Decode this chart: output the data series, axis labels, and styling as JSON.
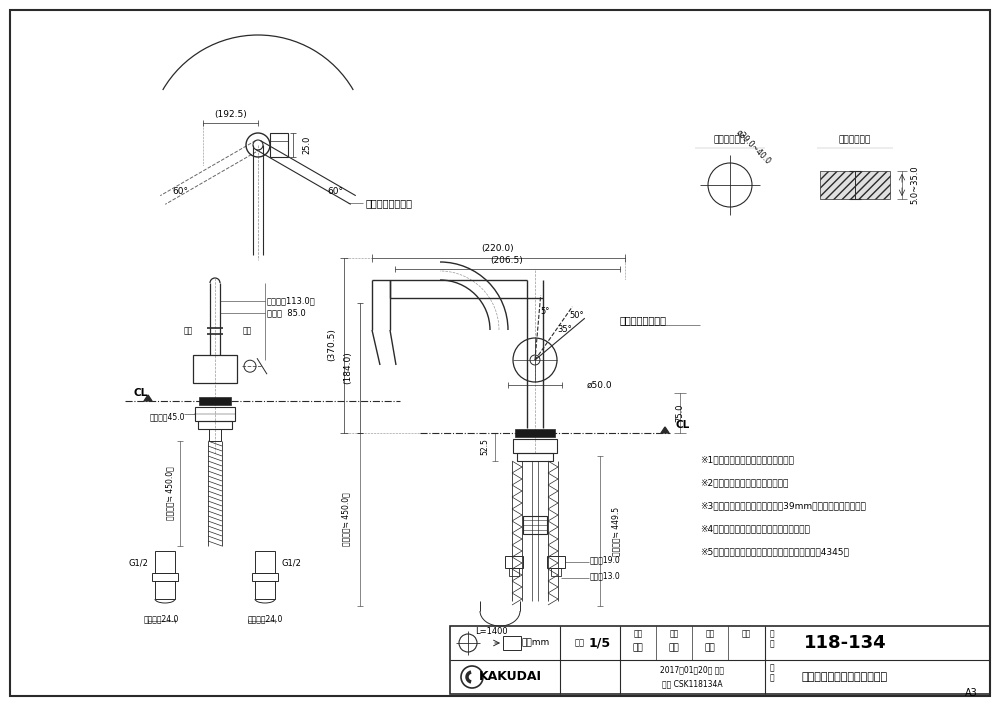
{
  "bg_color": "#ffffff",
  "line_color": "#2a2a2a",
  "dim_color": "#2a2a2a",
  "title": "シングルレバー引出し混合栓",
  "product_number": "118-134",
  "brand": "KAKUDAI",
  "scale": "1/5",
  "unit": "単位mm",
  "date": "2017年01月20日 作成",
  "drawing_number": "CSK118134A",
  "note1": "※1　（）内寸法は参考寸法である。",
  "note2": "※2　止水栓を必ず設置すること。",
  "note3": "※3　ブレードホースは曲げ半径39mm以上を確保すること。",
  "note4": "※4　銅管部分は無理に屈曲させないこと。",
  "note5": "※5　水受容器を必ず設置すること。（弊社製品4345）",
  "persons": [
    "遠藤",
    "寒川",
    "中嶋"
  ],
  "paper_size": "A3",
  "label_spout": "スパウト回転角度",
  "label_handle": "ハンドル回転角度",
  "label_CL": "CL",
  "label_mount_hole": "天板取付穴径",
  "label_mount_range": "天板締付範囲",
  "dim_192_5": "(192.5)",
  "dim_25": "25.0",
  "dim_60": "60°",
  "dim_113": "（全開時113.0）",
  "dim_85": "止水栓  85.0",
  "dim_370_5": "(370.5)",
  "dim_184": "(184.0)",
  "dim_220": "(220.0)",
  "dim_206_5": "(206.5)",
  "dim_50_angle": "50°",
  "dim_35_angle": "35°",
  "dim_5_angle": "5°",
  "dim_phi50": "ø50.0",
  "dim_75": "75.0",
  "dim_52_5": "52.5",
  "dim_hex45": "六角対辺45.0",
  "dim_450": "（管引量≒ 450.0）",
  "dim_449_5": "（引出量≒ 449.5",
  "dim_G1_2": "G1/2",
  "dim_hex24L": "大角対辺24.0",
  "dim_hex24R": "大角対辺24.0",
  "dim_L1400": "L=1400",
  "dim_hose19": "二重幅19.0",
  "dim_hose13": "二重幅13.0",
  "dim_phi39_40": "ø39.0~40.0",
  "dim_5_35": "5.0~35.0"
}
